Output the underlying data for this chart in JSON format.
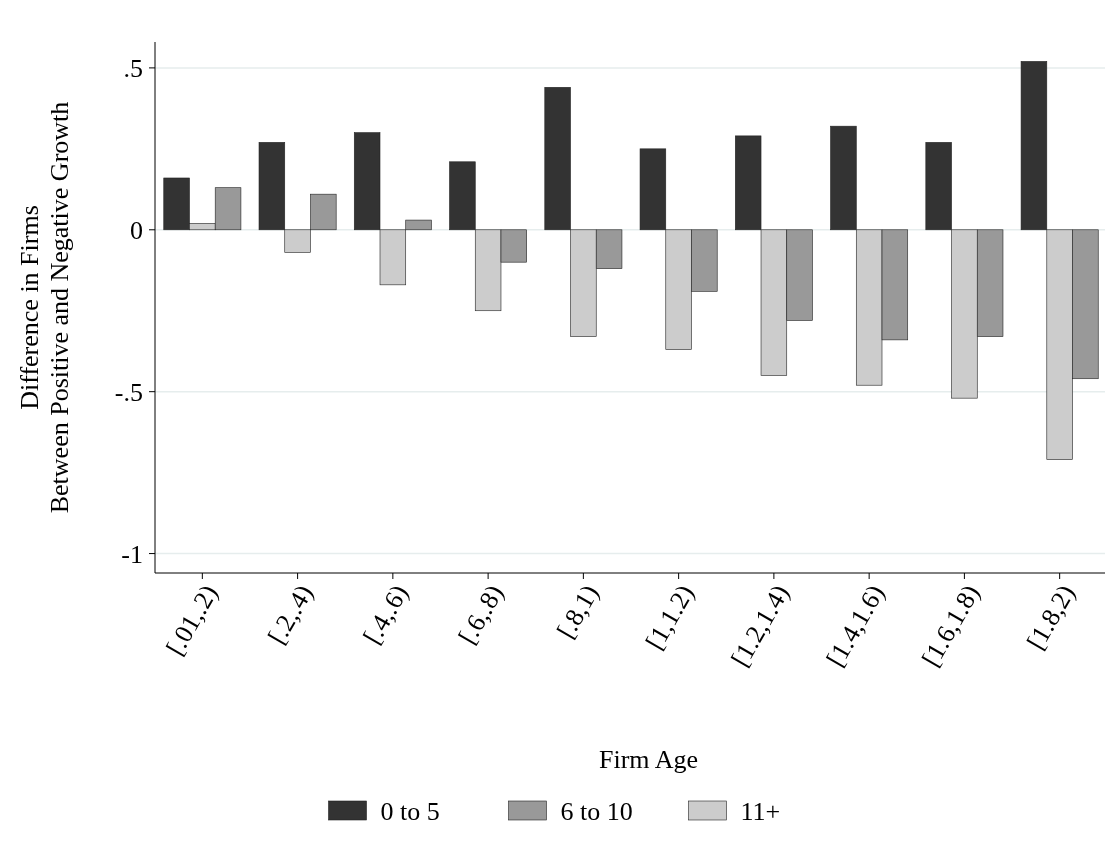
{
  "chart_data": {
    "type": "bar",
    "ylabel": "Difference in Firms\nBetween Positive and Negative Growth",
    "legend_title": "Firm Age",
    "categories": [
      "[.01,.2)",
      "[.2,.4)",
      "[.4,.6)",
      "[.6,.8)",
      "[.8,1)",
      "[1,1.2)",
      "[1.2,1.4)",
      "[1.4,1.6)",
      "[1.6,1.8)",
      "[1.8,2)"
    ],
    "series": [
      {
        "name": "0 to 5",
        "color": "#333333",
        "values": [
          0.16,
          0.27,
          0.3,
          0.21,
          0.44,
          0.25,
          0.29,
          0.32,
          0.27,
          0.52
        ]
      },
      {
        "name": "6 to 10",
        "color": "#999999",
        "values": [
          0.13,
          0.11,
          0.03,
          -0.1,
          -0.12,
          -0.19,
          -0.28,
          -0.34,
          -0.33,
          -0.46
        ]
      },
      {
        "name": "11+",
        "color": "#cccccc",
        "values": [
          0.02,
          -0.07,
          -0.17,
          -0.25,
          -0.33,
          -0.37,
          -0.45,
          -0.48,
          -0.52,
          -0.71
        ]
      }
    ],
    "ylim": [
      -1.06,
      0.58
    ],
    "yticks": [
      {
        "value": 0.5,
        "label": ".5"
      },
      0,
      {
        "value": -0.5,
        "label": "-.5"
      },
      -1
    ],
    "grid": "y",
    "legend": "bottom"
  }
}
